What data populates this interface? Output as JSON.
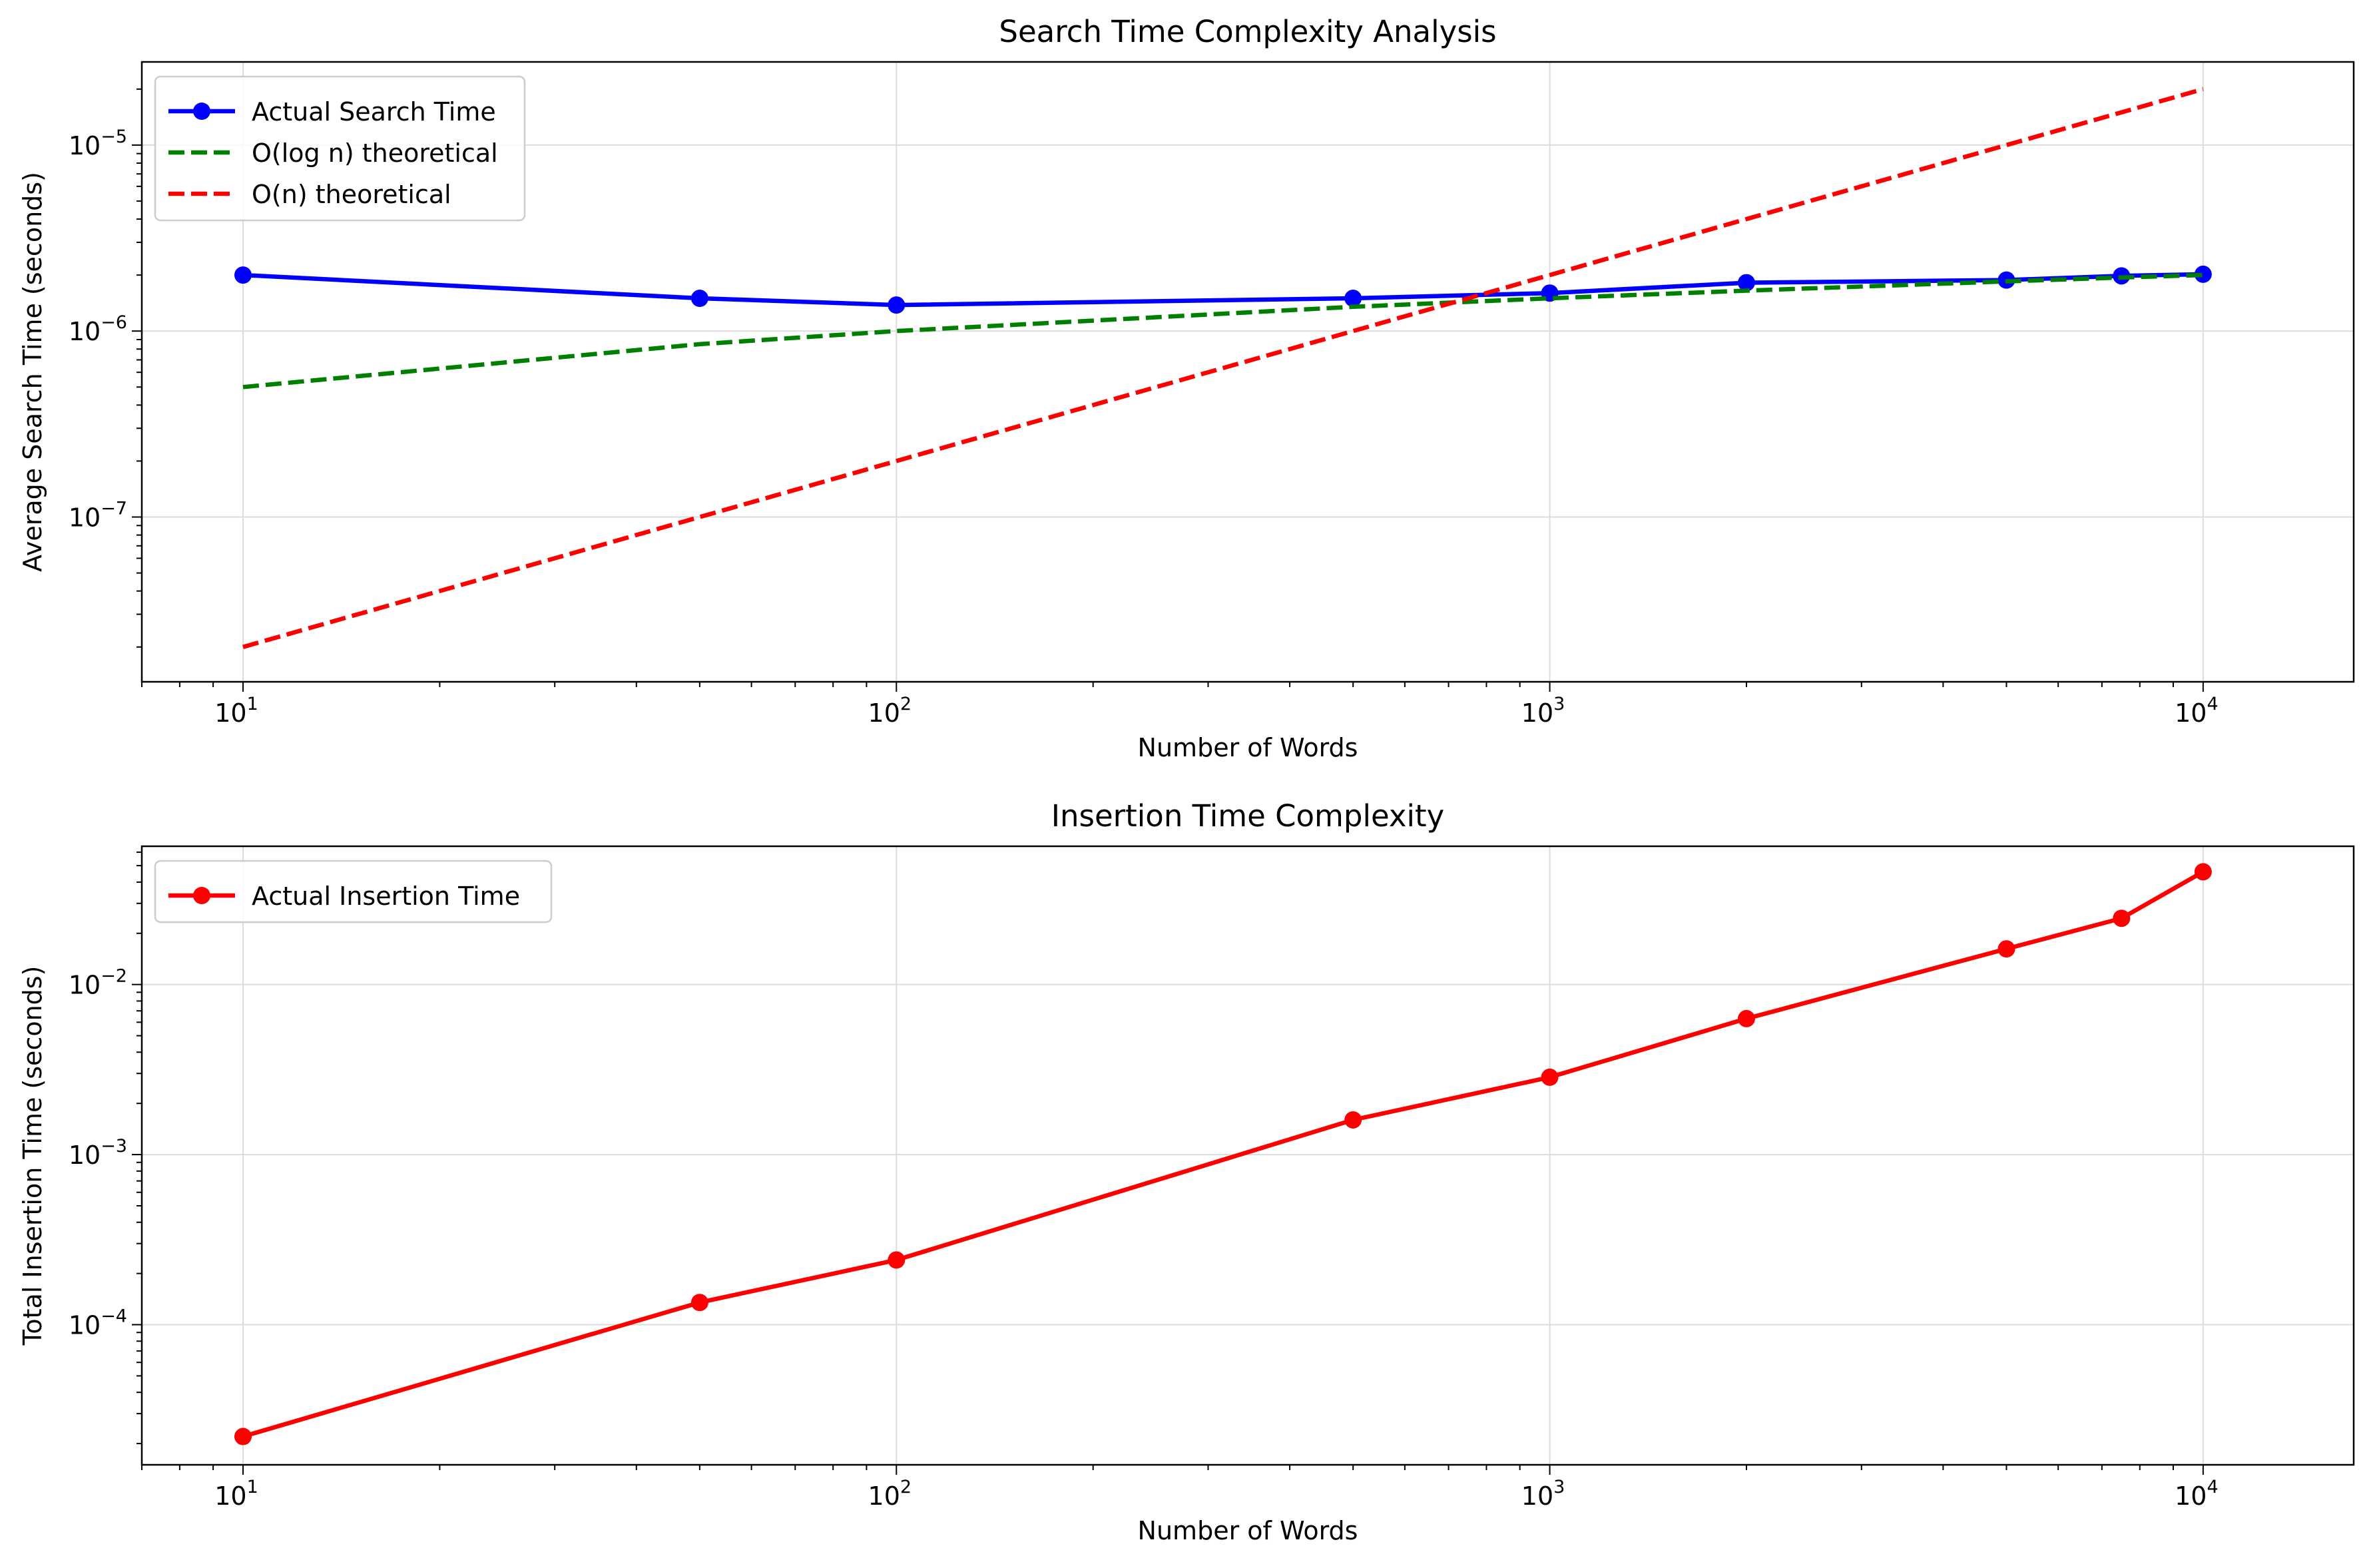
{
  "chart_data": [
    {
      "type": "line",
      "title": "Search Time Complexity Analysis",
      "xlabel": "Number of Words",
      "ylabel": "Average Search Time (seconds)",
      "xscale": "log",
      "yscale": "log",
      "xlim": [
        7,
        17000
      ],
      "ylim": [
        1.3e-08,
        2.8e-05
      ],
      "xticks": [
        10,
        100,
        1000,
        10000
      ],
      "xtick_labels": [
        {
          "base": "10",
          "exp": "1"
        },
        {
          "base": "10",
          "exp": "2"
        },
        {
          "base": "10",
          "exp": "3"
        },
        {
          "base": "10",
          "exp": "4"
        }
      ],
      "yticks": [
        1e-07,
        1e-06,
        1e-05
      ],
      "ytick_labels": [
        {
          "base": "10",
          "exp": "−7"
        },
        {
          "base": "10",
          "exp": "−6"
        },
        {
          "base": "10",
          "exp": "−5"
        }
      ],
      "grid": true,
      "legend_position": "upper-left",
      "series": [
        {
          "name": "Actual Search Time",
          "color": "#0000ff",
          "style": "solid-markers",
          "x": [
            10,
            50,
            100,
            500,
            1000,
            2000,
            5000,
            7500,
            10000
          ],
          "y": [
            2e-06,
            1.5e-06,
            1.38e-06,
            1.5e-06,
            1.6e-06,
            1.82e-06,
            1.88e-06,
            1.98e-06,
            2.02e-06
          ]
        },
        {
          "name": "O(log n) theoretical",
          "color": "#008000",
          "style": "dashed",
          "x": [
            10,
            50,
            100,
            500,
            1000,
            2000,
            5000,
            7500,
            10000
          ],
          "y": [
            5e-07,
            8.5e-07,
            1e-06,
            1.35e-06,
            1.5e-06,
            1.65e-06,
            1.85e-06,
            1.94e-06,
            2e-06
          ]
        },
        {
          "name": "O(n) theoretical",
          "color": "#ff0000",
          "style": "dashed",
          "x": [
            10,
            50,
            100,
            500,
            1000,
            2000,
            5000,
            7500,
            10000
          ],
          "y": [
            2e-08,
            1e-07,
            2e-07,
            1e-06,
            2e-06,
            4e-06,
            1e-05,
            1.5e-05,
            2e-05
          ]
        }
      ]
    },
    {
      "type": "line",
      "title": "Insertion Time Complexity",
      "xlabel": "Number of Words",
      "ylabel": "Total Insertion Time (seconds)",
      "xscale": "log",
      "yscale": "log",
      "xlim": [
        7,
        17000
      ],
      "ylim": [
        1.5e-05,
        0.065
      ],
      "xticks": [
        10,
        100,
        1000,
        10000
      ],
      "xtick_labels": [
        {
          "base": "10",
          "exp": "1"
        },
        {
          "base": "10",
          "exp": "2"
        },
        {
          "base": "10",
          "exp": "3"
        },
        {
          "base": "10",
          "exp": "4"
        }
      ],
      "yticks": [
        0.0001,
        0.001,
        0.01
      ],
      "ytick_labels": [
        {
          "base": "10",
          "exp": "−4"
        },
        {
          "base": "10",
          "exp": "−3"
        },
        {
          "base": "10",
          "exp": "−2"
        }
      ],
      "grid": true,
      "legend_position": "upper-left",
      "series": [
        {
          "name": "Actual Insertion Time",
          "color": "#ff0000",
          "style": "solid-markers",
          "x": [
            10,
            50,
            100,
            500,
            1000,
            2000,
            5000,
            7500,
            10000
          ],
          "y": [
            2.2e-05,
            0.000135,
            0.00024,
            0.0016,
            0.00285,
            0.0063,
            0.0162,
            0.0245,
            0.046
          ]
        }
      ]
    }
  ]
}
